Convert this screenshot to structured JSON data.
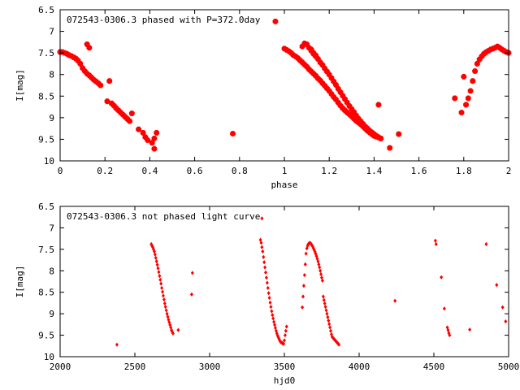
{
  "chart_data": [
    {
      "type": "scatter",
      "title": "072543-0306.3 phased with P=372.0day",
      "xlabel": "phase",
      "ylabel": "I[mag]",
      "xlim": [
        0,
        2
      ],
      "ylim": [
        6.5,
        10
      ],
      "y_inverted": true,
      "x_ticks": [
        "0",
        "0.2",
        "0.4",
        "0.6",
        "0.8",
        "1",
        "1.2",
        "1.4",
        "1.6",
        "1.8",
        "2"
      ],
      "y_ticks": [
        "6.5",
        "7",
        "7.5",
        "8",
        "8.5",
        "9",
        "9.5",
        "10"
      ],
      "marker_color": "#ff0000",
      "grid": false,
      "series": [
        {
          "x": [
            0.0,
            0.01,
            0.02,
            0.03,
            0.04,
            0.05,
            0.06,
            0.07,
            0.08,
            0.09,
            0.1,
            0.11,
            0.12,
            0.13,
            0.14,
            0.15,
            0.16,
            0.17,
            0.18,
            0.12,
            0.13,
            0.22,
            0.21,
            0.23,
            0.24,
            0.25,
            0.26,
            0.27,
            0.28,
            0.29,
            0.3,
            0.31,
            0.32,
            0.35,
            0.37,
            0.38,
            0.39,
            0.41,
            0.42,
            0.43,
            0.42,
            0.77,
            0.96,
            1.0,
            1.01,
            1.02,
            1.03,
            1.04,
            1.05,
            1.06,
            1.07,
            1.08,
            1.09,
            1.1,
            1.11,
            1.12,
            1.13,
            1.14,
            1.15,
            1.16,
            1.17,
            1.18,
            1.19,
            1.2,
            1.21,
            1.22,
            1.23,
            1.24,
            1.25,
            1.26,
            1.27,
            1.28,
            1.29,
            1.3,
            1.31,
            1.32,
            1.33,
            1.34,
            1.35,
            1.36,
            1.37,
            1.38,
            1.39,
            1.4,
            1.41,
            1.42,
            1.43,
            1.12,
            1.13,
            1.14,
            1.15,
            1.16,
            1.17,
            1.18,
            1.19,
            1.2,
            1.21,
            1.22,
            1.23,
            1.24,
            1.25,
            1.26,
            1.27,
            1.28,
            1.29,
            1.3,
            1.31,
            1.32,
            1.33,
            1.34,
            1.35,
            1.36,
            1.37,
            1.38,
            1.39,
            1.4,
            1.41,
            1.42,
            1.43,
            1.08,
            1.09,
            1.1,
            1.11,
            1.12,
            1.13,
            1.14,
            1.42,
            1.47,
            1.51,
            1.76,
            1.79,
            1.8,
            1.81,
            1.82,
            1.83,
            1.84,
            1.85,
            1.86,
            1.87,
            1.88,
            1.89,
            1.9,
            1.91,
            1.92,
            1.93,
            1.94,
            1.95,
            1.96,
            1.97,
            1.98,
            1.99,
            2.0
          ],
          "y": [
            7.48,
            7.48,
            7.5,
            7.52,
            7.55,
            7.57,
            7.6,
            7.63,
            7.68,
            7.75,
            7.85,
            7.92,
            7.98,
            8.02,
            8.07,
            8.12,
            8.16,
            8.2,
            8.25,
            7.3,
            7.38,
            8.15,
            8.62,
            8.67,
            8.72,
            8.78,
            8.83,
            8.88,
            8.93,
            8.98,
            9.03,
            9.08,
            8.9,
            9.27,
            9.35,
            9.45,
            9.52,
            9.58,
            9.72,
            9.35,
            9.48,
            9.37,
            6.77,
            7.4,
            7.43,
            7.46,
            7.5,
            7.55,
            7.58,
            7.62,
            7.67,
            7.72,
            7.77,
            7.82,
            7.88,
            7.93,
            7.98,
            8.03,
            8.09,
            8.14,
            8.2,
            8.26,
            8.32,
            8.38,
            8.45,
            8.52,
            8.58,
            8.65,
            8.72,
            8.78,
            8.83,
            8.88,
            8.92,
            8.97,
            9.02,
            9.07,
            9.11,
            9.15,
            9.2,
            9.25,
            9.3,
            9.34,
            9.38,
            9.42,
            9.44,
            9.46,
            9.48,
            7.45,
            7.52,
            7.58,
            7.64,
            7.72,
            7.78,
            7.86,
            7.93,
            8.0,
            8.08,
            8.16,
            8.24,
            8.33,
            8.41,
            8.49,
            8.57,
            8.65,
            8.73,
            8.8,
            8.87,
            8.95,
            9.02,
            9.08,
            9.14,
            9.2,
            9.25,
            9.3,
            9.34,
            9.38,
            9.42,
            9.45,
            9.48,
            7.35,
            7.28,
            7.3,
            7.38,
            7.42,
            7.5,
            7.56,
            8.7,
            9.7,
            9.38,
            8.55,
            8.88,
            8.05,
            8.7,
            8.55,
            8.38,
            8.15,
            7.92,
            7.75,
            7.65,
            7.58,
            7.52,
            7.48,
            7.45,
            7.42,
            7.4,
            7.38,
            7.35,
            7.38,
            7.42,
            7.45,
            7.48,
            7.5
          ],
          "marker": "star"
        }
      ]
    },
    {
      "type": "scatter",
      "title": "072543-0306.3 not phased light curve",
      "xlabel": "hjd0",
      "ylabel": "I[mag]",
      "xlim": [
        2000,
        5000
      ],
      "ylim": [
        6.5,
        10
      ],
      "y_inverted": true,
      "x_ticks": [
        "2000",
        "2500",
        "3000",
        "3500",
        "4000",
        "4500",
        "5000"
      ],
      "y_ticks": [
        "6.5",
        "7",
        "7.5",
        "8",
        "8.5",
        "9",
        "9.5",
        "10"
      ],
      "marker_color": "#ff0000",
      "grid": false,
      "series": [
        {
          "x": [
            2380,
            2610,
            2615,
            2620,
            2625,
            2630,
            2635,
            2640,
            2645,
            2650,
            2655,
            2660,
            2665,
            2670,
            2675,
            2680,
            2685,
            2690,
            2695,
            2700,
            2705,
            2710,
            2715,
            2720,
            2725,
            2730,
            2735,
            2740,
            2745,
            2750,
            2755,
            2790,
            2880,
            2885,
            3340,
            3345,
            3350,
            3355,
            3360,
            3365,
            3370,
            3375,
            3380,
            3385,
            3390,
            3395,
            3400,
            3405,
            3410,
            3415,
            3420,
            3425,
            3430,
            3435,
            3440,
            3445,
            3450,
            3455,
            3460,
            3465,
            3470,
            3475,
            3480,
            3485,
            3490,
            3495,
            3500,
            3505,
            3510,
            3515,
            3350,
            3620,
            3625,
            3630,
            3635,
            3640,
            3645,
            3650,
            3655,
            3660,
            3665,
            3670,
            3675,
            3680,
            3685,
            3690,
            3695,
            3700,
            3705,
            3710,
            3715,
            3720,
            3725,
            3730,
            3735,
            3740,
            3745,
            3750,
            3755,
            3760,
            3765,
            3770,
            3775,
            3780,
            3785,
            3790,
            3795,
            3800,
            3805,
            3810,
            3815,
            3820,
            3825,
            3830,
            3835,
            3840,
            3845,
            3850,
            3855,
            3860,
            3865,
            4240,
            4510,
            4515,
            4550,
            4570,
            4590,
            4595,
            4600,
            4605,
            4740,
            4850,
            4920,
            4960,
            4980
          ],
          "y": [
            9.72,
            7.38,
            7.42,
            7.45,
            7.5,
            7.55,
            7.62,
            7.7,
            7.78,
            7.86,
            7.94,
            8.03,
            8.12,
            8.21,
            8.3,
            8.4,
            8.49,
            8.58,
            8.67,
            8.76,
            8.84,
            8.92,
            9.0,
            9.07,
            9.14,
            9.2,
            9.26,
            9.32,
            9.38,
            9.42,
            9.46,
            9.38,
            8.55,
            8.05,
            7.28,
            7.35,
            7.45,
            7.55,
            7.68,
            7.8,
            7.92,
            8.04,
            8.16,
            8.28,
            8.4,
            8.52,
            8.63,
            8.74,
            8.84,
            8.94,
            9.03,
            9.11,
            9.19,
            9.26,
            9.33,
            9.4,
            9.46,
            9.51,
            9.55,
            9.59,
            9.63,
            9.66,
            9.67,
            9.68,
            9.69,
            9.7,
            9.62,
            9.5,
            9.4,
            9.3,
            6.78,
            8.85,
            8.6,
            8.35,
            8.1,
            7.85,
            7.6,
            7.48,
            7.42,
            7.38,
            7.36,
            7.35,
            7.36,
            7.38,
            7.41,
            7.44,
            7.48,
            7.52,
            7.56,
            7.61,
            7.66,
            7.72,
            7.78,
            7.85,
            7.92,
            8.0,
            8.08,
            8.16,
            8.23,
            8.6,
            8.68,
            8.76,
            8.84,
            8.92,
            9.0,
            9.08,
            9.16,
            9.24,
            9.32,
            9.4,
            9.48,
            9.54,
            9.56,
            9.58,
            9.6,
            9.62,
            9.64,
            9.66,
            9.68,
            9.7,
            9.72,
            8.7,
            7.3,
            7.38,
            8.15,
            8.88,
            9.32,
            9.38,
            9.45,
            9.5,
            9.37,
            7.38,
            8.33,
            8.85,
            9.18
          ],
          "marker": "diamond"
        }
      ]
    }
  ]
}
